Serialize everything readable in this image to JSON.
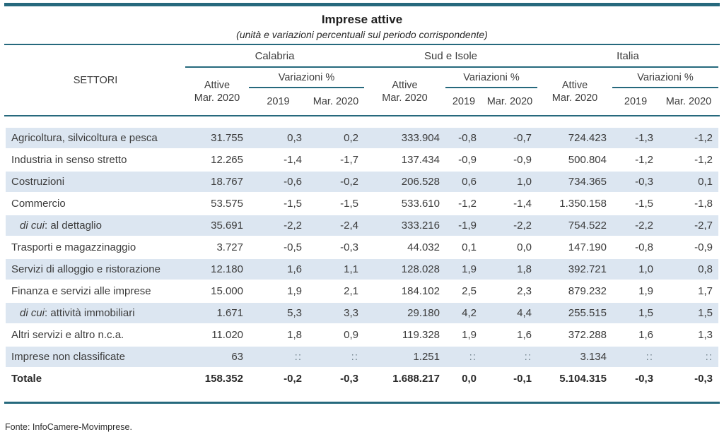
{
  "page": {
    "title": "Imprese attive",
    "subtitle": "(unità e variazioni percentuali sul periodo corrispondente)",
    "source": "Fonte: InfoCamere-Movimprese."
  },
  "colors": {
    "rule_teal": "#26697d",
    "row_stripe_blue": "#dce6f1",
    "text": "#3c3c3c"
  },
  "table": {
    "settori_label": "SETTORI",
    "groups": [
      {
        "label": "Calabria"
      },
      {
        "label": "Sud e Isole"
      },
      {
        "label": "Italia"
      }
    ],
    "attive_line1": "Attive",
    "attive_line2": "Mar. 2020",
    "variazioni_label": "Variazioni %",
    "years": [
      "2019",
      "Mar. 2020"
    ],
    "rows": [
      {
        "italic_prefix": "",
        "label": "Agricoltura, silvicoltura e pesca",
        "indent": false,
        "bold": false,
        "values": [
          "31.755",
          "0,3",
          "0,2",
          "333.904",
          "-0,8",
          "-0,7",
          "724.423",
          "-1,3",
          "-1,2"
        ]
      },
      {
        "italic_prefix": "",
        "label": "Industria in senso stretto",
        "indent": false,
        "bold": false,
        "values": [
          "12.265",
          "-1,4",
          "-1,7",
          "137.434",
          "-0,9",
          "-0,9",
          "500.804",
          "-1,2",
          "-1,2"
        ]
      },
      {
        "italic_prefix": "",
        "label": "Costruzioni",
        "indent": false,
        "bold": false,
        "values": [
          "18.767",
          "-0,6",
          "-0,2",
          "206.528",
          "0,6",
          "1,0",
          "734.365",
          "-0,3",
          "0,1"
        ]
      },
      {
        "italic_prefix": "",
        "label": "Commercio",
        "indent": false,
        "bold": false,
        "values": [
          "53.575",
          "-1,5",
          "-1,5",
          "533.610",
          "-1,2",
          "-1,4",
          "1.350.158",
          "-1,5",
          "-1,8"
        ]
      },
      {
        "italic_prefix": "di cui",
        "label": ": al dettaglio",
        "indent": true,
        "bold": false,
        "values": [
          "35.691",
          "-2,2",
          "-2,4",
          "333.216",
          "-1,9",
          "-2,2",
          "754.522",
          "-2,2",
          "-2,7"
        ]
      },
      {
        "italic_prefix": "",
        "label": "Trasporti e magazzinaggio",
        "indent": false,
        "bold": false,
        "values": [
          "3.727",
          "-0,5",
          "-0,3",
          "44.032",
          "0,1",
          "0,0",
          "147.190",
          "-0,8",
          "-0,9"
        ]
      },
      {
        "italic_prefix": "",
        "label": "Servizi di alloggio e ristorazione",
        "indent": false,
        "bold": false,
        "values": [
          "12.180",
          "1,6",
          "1,1",
          "128.028",
          "1,9",
          "1,8",
          "392.721",
          "1,0",
          "0,8"
        ]
      },
      {
        "italic_prefix": "",
        "label": "Finanza e servizi alle imprese",
        "indent": false,
        "bold": false,
        "values": [
          "15.000",
          "1,9",
          "2,1",
          "184.102",
          "2,5",
          "2,3",
          "879.232",
          "1,9",
          "1,7"
        ]
      },
      {
        "italic_prefix": "di cui",
        "label": ": attività immobiliari",
        "indent": true,
        "bold": false,
        "values": [
          "1.671",
          "5,3",
          "3,3",
          "29.180",
          "4,2",
          "4,4",
          "255.515",
          "1,5",
          "1,5"
        ]
      },
      {
        "italic_prefix": "",
        "label": "Altri servizi e altro n.c.a.",
        "indent": false,
        "bold": false,
        "values": [
          "11.020",
          "1,8",
          "0,9",
          "119.328",
          "1,9",
          "1,6",
          "372.288",
          "1,6",
          "1,3"
        ]
      },
      {
        "italic_prefix": "",
        "label": "Imprese non classificate",
        "indent": false,
        "bold": false,
        "values": [
          "63",
          "::",
          "::",
          "1.251",
          "::",
          "::",
          "3.134",
          "::",
          "::"
        ]
      },
      {
        "italic_prefix": "",
        "label": "Totale",
        "indent": false,
        "bold": true,
        "values": [
          "158.352",
          "-0,2",
          "-0,3",
          "1.688.217",
          "0,0",
          "-0,1",
          "5.104.315",
          "-0,3",
          "-0,3"
        ]
      }
    ]
  }
}
